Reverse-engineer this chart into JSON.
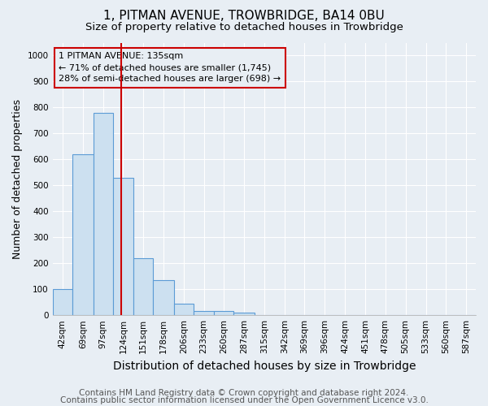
{
  "title1": "1, PITMAN AVENUE, TROWBRIDGE, BA14 0BU",
  "title2": "Size of property relative to detached houses in Trowbridge",
  "xlabel": "Distribution of detached houses by size in Trowbridge",
  "ylabel": "Number of detached properties",
  "bin_labels": [
    "42sqm",
    "69sqm",
    "97sqm",
    "124sqm",
    "151sqm",
    "178sqm",
    "206sqm",
    "233sqm",
    "260sqm",
    "287sqm",
    "315sqm",
    "342sqm",
    "369sqm",
    "396sqm",
    "424sqm",
    "451sqm",
    "478sqm",
    "505sqm",
    "533sqm",
    "560sqm",
    "587sqm"
  ],
  "bin_edges": [
    42,
    69,
    97,
    124,
    151,
    178,
    206,
    233,
    260,
    287,
    315,
    342,
    369,
    396,
    424,
    451,
    478,
    505,
    533,
    560,
    587,
    614
  ],
  "bar_heights": [
    100,
    620,
    780,
    530,
    220,
    135,
    45,
    15,
    15,
    10,
    0,
    0,
    0,
    0,
    0,
    0,
    0,
    0,
    0,
    0,
    0
  ],
  "bar_facecolor": "#cce0f0",
  "bar_edgecolor": "#5b9bd5",
  "property_line_x": 135,
  "property_line_color": "#cc0000",
  "annotation_line1": "1 PITMAN AVENUE: 135sqm",
  "annotation_line2": "← 71% of detached houses are smaller (1,745)",
  "annotation_line3": "28% of semi-detached houses are larger (698) →",
  "annotation_box_color": "#cc0000",
  "ylim": [
    0,
    1050
  ],
  "yticks": [
    0,
    100,
    200,
    300,
    400,
    500,
    600,
    700,
    800,
    900,
    1000
  ],
  "footnote1": "Contains HM Land Registry data © Crown copyright and database right 2024.",
  "footnote2": "Contains public sector information licensed under the Open Government Licence v3.0.",
  "bg_color": "#e8eef4",
  "plot_bg_color": "#e8eef4",
  "grid_color": "#ffffff",
  "title1_fontsize": 11,
  "title2_fontsize": 9.5,
  "xlabel_fontsize": 10,
  "ylabel_fontsize": 9,
  "tick_fontsize": 7.5,
  "annot_fontsize": 8,
  "footnote_fontsize": 7.5
}
